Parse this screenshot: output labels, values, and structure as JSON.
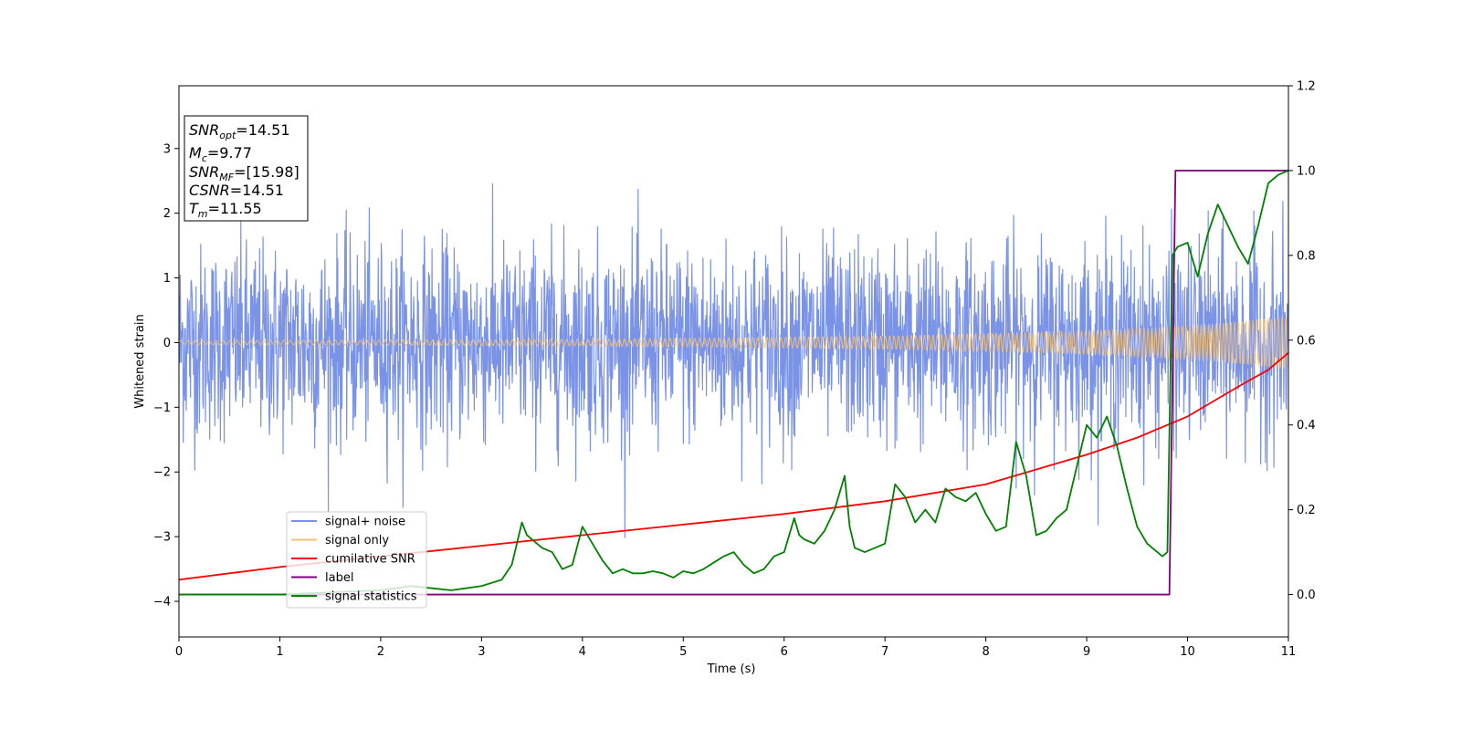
{
  "chart_data": {
    "type": "line",
    "xlabel": "Time (s)",
    "ylabel": "Whitened strain",
    "xlim": [
      0,
      11
    ],
    "ylim": [
      -4.55,
      3.97
    ],
    "y2lim": [
      -0.1,
      1.2
    ],
    "xticks": [
      0,
      1,
      2,
      3,
      4,
      5,
      6,
      7,
      8,
      9,
      10,
      11
    ],
    "yticks": [
      -4,
      -3,
      -2,
      -1,
      0,
      1,
      2,
      3
    ],
    "y2ticks": [
      0.0,
      0.2,
      0.4,
      0.6,
      0.8,
      1.0,
      1.2
    ],
    "legend_position": "lower-left",
    "annotation_box": {
      "position": "top-left",
      "lines": [
        {
          "sym": "SNR",
          "sub": "opt",
          "value": "=14.51"
        },
        {
          "sym": "M",
          "sub": "c",
          "value": "=9.77"
        },
        {
          "sym": "SNR",
          "sub": "MF",
          "value": "=[15.98]"
        },
        {
          "sym": "CSNR",
          "sub": "",
          "value": "=14.51"
        },
        {
          "sym": "T",
          "sub": "m",
          "value": "=11.55"
        }
      ]
    },
    "series": [
      {
        "name": "signal+ noise",
        "axis": "left",
        "color": "#7a93e6",
        "kind": "noise_band",
        "envelope_typical": 2.0,
        "envelope_peak": 3.5
      },
      {
        "name": "signal only",
        "axis": "left",
        "color": "#f3c27a",
        "kind": "chirp",
        "amplitude": [
          [
            0,
            0.03
          ],
          [
            4,
            0.05
          ],
          [
            7,
            0.1
          ],
          [
            9,
            0.18
          ],
          [
            10,
            0.26
          ],
          [
            11,
            0.4
          ]
        ]
      },
      {
        "name": "cumilative SNR",
        "axis": "right",
        "color": "#ff0000",
        "x": [
          0,
          1,
          2,
          3,
          4,
          5,
          6,
          7,
          8,
          9,
          9.5,
          10,
          10.5,
          10.8,
          11
        ],
        "y": [
          0.035,
          0.065,
          0.09,
          0.115,
          0.14,
          0.165,
          0.19,
          0.22,
          0.26,
          0.33,
          0.37,
          0.42,
          0.49,
          0.53,
          0.57
        ]
      },
      {
        "name": "label",
        "axis": "right",
        "color": "#800080",
        "x": [
          0,
          9.82,
          9.88,
          11
        ],
        "y": [
          0.0,
          0.0,
          1.0,
          1.0
        ]
      },
      {
        "name": "signal statistics",
        "axis": "right",
        "color": "#008000",
        "x": [
          0,
          1,
          2,
          2.3,
          2.5,
          2.7,
          3.0,
          3.2,
          3.3,
          3.4,
          3.45,
          3.5,
          3.6,
          3.7,
          3.8,
          3.9,
          4.0,
          4.1,
          4.2,
          4.3,
          4.4,
          4.5,
          4.6,
          4.7,
          4.8,
          4.9,
          5.0,
          5.1,
          5.2,
          5.3,
          5.4,
          5.5,
          5.6,
          5.7,
          5.8,
          5.9,
          6.0,
          6.1,
          6.15,
          6.2,
          6.3,
          6.4,
          6.5,
          6.6,
          6.65,
          6.7,
          6.8,
          6.9,
          7.0,
          7.1,
          7.2,
          7.3,
          7.4,
          7.5,
          7.6,
          7.7,
          7.8,
          7.9,
          8.0,
          8.1,
          8.2,
          8.3,
          8.4,
          8.5,
          8.6,
          8.7,
          8.8,
          8.9,
          9.0,
          9.1,
          9.2,
          9.3,
          9.4,
          9.5,
          9.6,
          9.7,
          9.75,
          9.8,
          9.85,
          9.9,
          10.0,
          10.1,
          10.2,
          10.3,
          10.4,
          10.5,
          10.6,
          10.7,
          10.8,
          10.9,
          11.0
        ],
        "y": [
          0.0,
          0.0,
          0.01,
          0.02,
          0.015,
          0.01,
          0.02,
          0.035,
          0.07,
          0.17,
          0.14,
          0.13,
          0.11,
          0.1,
          0.06,
          0.07,
          0.16,
          0.12,
          0.08,
          0.05,
          0.06,
          0.05,
          0.05,
          0.055,
          0.05,
          0.04,
          0.055,
          0.05,
          0.06,
          0.075,
          0.09,
          0.1,
          0.07,
          0.05,
          0.06,
          0.09,
          0.1,
          0.18,
          0.14,
          0.13,
          0.12,
          0.15,
          0.2,
          0.28,
          0.16,
          0.11,
          0.1,
          0.11,
          0.12,
          0.26,
          0.23,
          0.17,
          0.2,
          0.17,
          0.25,
          0.23,
          0.22,
          0.24,
          0.19,
          0.15,
          0.16,
          0.36,
          0.28,
          0.14,
          0.15,
          0.18,
          0.2,
          0.3,
          0.4,
          0.37,
          0.42,
          0.35,
          0.25,
          0.16,
          0.12,
          0.1,
          0.09,
          0.1,
          0.8,
          0.82,
          0.83,
          0.75,
          0.85,
          0.92,
          0.87,
          0.82,
          0.78,
          0.87,
          0.97,
          0.99,
          1.0
        ]
      }
    ]
  }
}
